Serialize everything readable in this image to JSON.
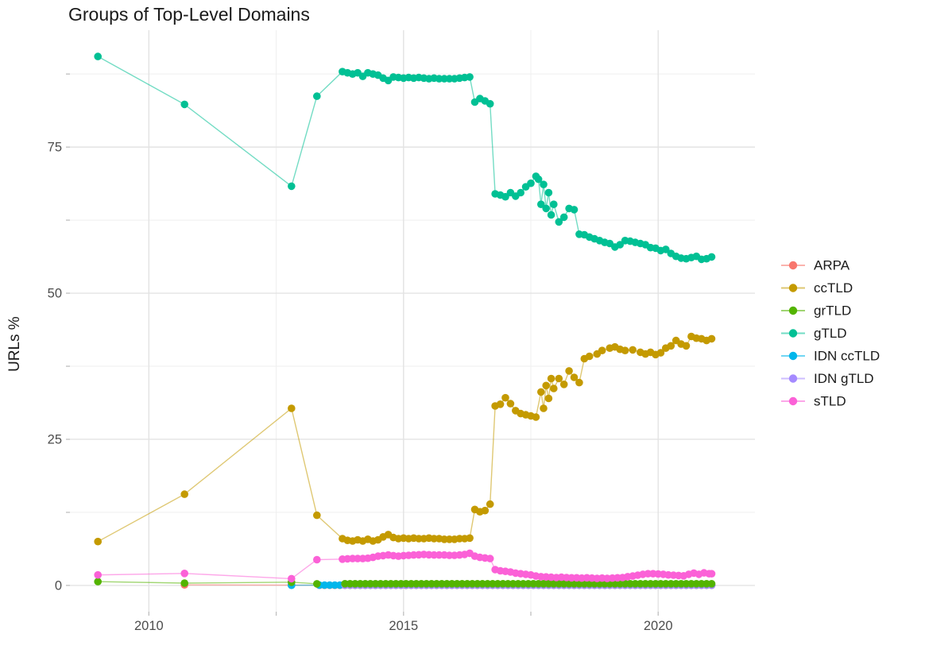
{
  "title": "Groups of Top-Level Domains",
  "chart_data": {
    "type": "line",
    "title": "Groups of Top-Level Domains",
    "xlabel": "",
    "ylabel": "URLs %",
    "xlim": [
      2008.45,
      2021.9
    ],
    "ylim": [
      -4.5,
      95.0
    ],
    "grid": true,
    "legend_position": "right",
    "x_ticks": {
      "major": [
        2010,
        2015,
        2020
      ],
      "labels": [
        "2010",
        "2015",
        "2020"
      ],
      "minor": [
        2012.5,
        2017.5
      ]
    },
    "y_ticks": {
      "major": [
        0,
        25,
        50,
        75
      ],
      "labels": [
        "0",
        "25",
        "50",
        "75"
      ],
      "minor": [
        12.5,
        37.5,
        62.5,
        87.5
      ]
    },
    "draw_order": [
      "ARPA",
      "IDN ccTLD",
      "IDN gTLD",
      "ccTLD",
      "grTLD",
      "gTLD",
      "sTLD"
    ],
    "series": [
      {
        "name": "ARPA",
        "color": "#F8766D",
        "points": [
          [
            2010.7,
            0.1
          ],
          [
            2012.8,
            0.05
          ]
        ],
        "flat": {
          "from": 2013.35,
          "to": 2021.05,
          "step": 0.1,
          "value": 0.02
        }
      },
      {
        "name": "ccTLD",
        "color": "#C49A00",
        "points": [
          [
            2009,
            7.5
          ],
          [
            2010.7,
            15.6
          ],
          [
            2012.8,
            30.3
          ],
          [
            2013.3,
            12.0
          ],
          [
            2013.8,
            8.0
          ],
          [
            2013.9,
            7.7
          ],
          [
            2014.0,
            7.6
          ],
          [
            2014.1,
            7.8
          ],
          [
            2014.2,
            7.6
          ],
          [
            2014.3,
            7.9
          ],
          [
            2014.4,
            7.6
          ],
          [
            2014.5,
            7.8
          ],
          [
            2014.6,
            8.3
          ],
          [
            2014.7,
            8.7
          ],
          [
            2014.8,
            8.2
          ],
          [
            2014.9,
            8.0
          ],
          [
            2015.0,
            8.1
          ],
          [
            2015.1,
            8.0
          ],
          [
            2015.2,
            8.1
          ],
          [
            2015.3,
            8.0
          ],
          [
            2015.4,
            8.0
          ],
          [
            2015.5,
            8.1
          ],
          [
            2015.6,
            8.0
          ],
          [
            2015.7,
            8.0
          ],
          [
            2015.8,
            7.9
          ],
          [
            2015.9,
            7.9
          ],
          [
            2016.0,
            7.9
          ],
          [
            2016.1,
            8.0
          ],
          [
            2016.2,
            8.0
          ],
          [
            2016.3,
            8.1
          ],
          [
            2016.4,
            13.0
          ],
          [
            2016.5,
            12.6
          ],
          [
            2016.6,
            12.8
          ],
          [
            2016.7,
            13.9
          ],
          [
            2016.8,
            30.7
          ],
          [
            2016.9,
            31.0
          ],
          [
            2017.0,
            32.1
          ],
          [
            2017.1,
            31.1
          ],
          [
            2017.2,
            29.9
          ],
          [
            2017.3,
            29.4
          ],
          [
            2017.4,
            29.2
          ],
          [
            2017.5,
            29.0
          ],
          [
            2017.6,
            28.8
          ],
          [
            2017.7,
            33.1
          ],
          [
            2017.75,
            30.3
          ],
          [
            2017.8,
            34.2
          ],
          [
            2017.85,
            32.0
          ],
          [
            2017.9,
            35.4
          ],
          [
            2017.95,
            33.7
          ],
          [
            2018.05,
            35.4
          ],
          [
            2018.15,
            34.4
          ],
          [
            2018.25,
            36.7
          ],
          [
            2018.35,
            35.6
          ],
          [
            2018.45,
            34.7
          ],
          [
            2018.55,
            38.8
          ],
          [
            2018.65,
            39.2
          ],
          [
            2018.8,
            39.6
          ],
          [
            2018.9,
            40.2
          ],
          [
            2019.05,
            40.6
          ],
          [
            2019.15,
            40.8
          ],
          [
            2019.25,
            40.4
          ],
          [
            2019.35,
            40.2
          ],
          [
            2019.5,
            40.3
          ],
          [
            2019.65,
            39.9
          ],
          [
            2019.75,
            39.6
          ],
          [
            2019.85,
            39.9
          ],
          [
            2019.95,
            39.5
          ],
          [
            2020.05,
            39.8
          ],
          [
            2020.15,
            40.6
          ],
          [
            2020.25,
            41.0
          ],
          [
            2020.35,
            41.9
          ],
          [
            2020.45,
            41.3
          ],
          [
            2020.55,
            41.0
          ],
          [
            2020.65,
            42.6
          ],
          [
            2020.75,
            42.3
          ],
          [
            2020.85,
            42.2
          ],
          [
            2020.95,
            41.9
          ],
          [
            2021.05,
            42.2
          ]
        ]
      },
      {
        "name": "grTLD",
        "color": "#53B400",
        "points": [
          [
            2009,
            0.65
          ],
          [
            2010.7,
            0.4
          ],
          [
            2012.8,
            0.55
          ],
          [
            2013.3,
            0.27
          ]
        ],
        "flat": {
          "from": 2013.85,
          "to": 2021.05,
          "step": 0.1,
          "value": 0.28
        }
      },
      {
        "name": "gTLD",
        "color": "#00C094",
        "points": [
          [
            2009,
            90.5
          ],
          [
            2010.7,
            82.3
          ],
          [
            2012.8,
            68.3
          ],
          [
            2013.3,
            83.7
          ],
          [
            2013.8,
            87.9
          ],
          [
            2013.9,
            87.7
          ],
          [
            2014.0,
            87.5
          ],
          [
            2014.1,
            87.7
          ],
          [
            2014.2,
            87.1
          ],
          [
            2014.3,
            87.7
          ],
          [
            2014.4,
            87.5
          ],
          [
            2014.5,
            87.3
          ],
          [
            2014.6,
            86.8
          ],
          [
            2014.7,
            86.4
          ],
          [
            2014.8,
            87.0
          ],
          [
            2014.9,
            86.9
          ],
          [
            2015.0,
            86.8
          ],
          [
            2015.1,
            86.9
          ],
          [
            2015.2,
            86.8
          ],
          [
            2015.3,
            86.9
          ],
          [
            2015.4,
            86.8
          ],
          [
            2015.5,
            86.7
          ],
          [
            2015.6,
            86.8
          ],
          [
            2015.7,
            86.7
          ],
          [
            2015.8,
            86.7
          ],
          [
            2015.9,
            86.7
          ],
          [
            2016.0,
            86.7
          ],
          [
            2016.1,
            86.8
          ],
          [
            2016.2,
            86.9
          ],
          [
            2016.3,
            87.0
          ],
          [
            2016.4,
            82.7
          ],
          [
            2016.5,
            83.3
          ],
          [
            2016.6,
            82.9
          ],
          [
            2016.7,
            82.4
          ],
          [
            2016.8,
            67.0
          ],
          [
            2016.9,
            66.8
          ],
          [
            2017.0,
            66.5
          ],
          [
            2017.1,
            67.2
          ],
          [
            2017.2,
            66.6
          ],
          [
            2017.3,
            67.2
          ],
          [
            2017.4,
            68.2
          ],
          [
            2017.5,
            68.8
          ],
          [
            2017.6,
            70.0
          ],
          [
            2017.65,
            69.5
          ],
          [
            2017.7,
            65.2
          ],
          [
            2017.75,
            68.6
          ],
          [
            2017.8,
            64.5
          ],
          [
            2017.85,
            67.2
          ],
          [
            2017.9,
            63.4
          ],
          [
            2017.95,
            65.2
          ],
          [
            2018.05,
            62.2
          ],
          [
            2018.15,
            63.0
          ],
          [
            2018.25,
            64.5
          ],
          [
            2018.35,
            64.3
          ],
          [
            2018.45,
            60.1
          ],
          [
            2018.55,
            60.0
          ],
          [
            2018.65,
            59.6
          ],
          [
            2018.75,
            59.3
          ],
          [
            2018.85,
            59.0
          ],
          [
            2018.95,
            58.7
          ],
          [
            2019.05,
            58.5
          ],
          [
            2019.15,
            57.9
          ],
          [
            2019.25,
            58.3
          ],
          [
            2019.35,
            59.0
          ],
          [
            2019.45,
            58.9
          ],
          [
            2019.55,
            58.7
          ],
          [
            2019.65,
            58.5
          ],
          [
            2019.75,
            58.3
          ],
          [
            2019.85,
            57.8
          ],
          [
            2019.95,
            57.7
          ],
          [
            2020.05,
            57.3
          ],
          [
            2020.15,
            57.5
          ],
          [
            2020.25,
            56.8
          ],
          [
            2020.35,
            56.3
          ],
          [
            2020.45,
            56.0
          ],
          [
            2020.55,
            55.9
          ],
          [
            2020.65,
            56.1
          ],
          [
            2020.75,
            56.3
          ],
          [
            2020.85,
            55.8
          ],
          [
            2020.95,
            55.9
          ],
          [
            2021.05,
            56.2
          ]
        ]
      },
      {
        "name": "IDN ccTLD",
        "color": "#00B6EB",
        "points": [
          [
            2012.8,
            0.02
          ]
        ],
        "flat": {
          "from": 2013.35,
          "to": 2021.05,
          "step": 0.1,
          "value": 0.05
        }
      },
      {
        "name": "IDN gTLD",
        "color": "#A58AFF",
        "points": [],
        "flat": {
          "from": 2013.85,
          "to": 2021.05,
          "step": 0.1,
          "value": 0.05
        }
      },
      {
        "name": "sTLD",
        "color": "#FB61D7",
        "points": [
          [
            2009,
            1.8
          ],
          [
            2010.7,
            2.05
          ],
          [
            2012.8,
            1.15
          ],
          [
            2013.3,
            4.4
          ],
          [
            2013.8,
            4.5
          ],
          [
            2013.9,
            4.55
          ],
          [
            2014.0,
            4.6
          ],
          [
            2014.1,
            4.6
          ],
          [
            2014.2,
            4.6
          ],
          [
            2014.3,
            4.65
          ],
          [
            2014.4,
            4.8
          ],
          [
            2014.5,
            5.0
          ],
          [
            2014.6,
            5.1
          ],
          [
            2014.7,
            5.2
          ],
          [
            2014.8,
            5.1
          ],
          [
            2014.9,
            5.0
          ],
          [
            2015.0,
            5.1
          ],
          [
            2015.1,
            5.15
          ],
          [
            2015.2,
            5.2
          ],
          [
            2015.3,
            5.25
          ],
          [
            2015.4,
            5.3
          ],
          [
            2015.5,
            5.25
          ],
          [
            2015.6,
            5.2
          ],
          [
            2015.7,
            5.2
          ],
          [
            2015.8,
            5.2
          ],
          [
            2015.9,
            5.15
          ],
          [
            2016.0,
            5.15
          ],
          [
            2016.1,
            5.2
          ],
          [
            2016.2,
            5.3
          ],
          [
            2016.3,
            5.5
          ],
          [
            2016.4,
            5.0
          ],
          [
            2016.5,
            4.8
          ],
          [
            2016.6,
            4.7
          ],
          [
            2016.7,
            4.6
          ],
          [
            2016.8,
            2.7
          ],
          [
            2016.9,
            2.5
          ],
          [
            2017.0,
            2.4
          ],
          [
            2017.1,
            2.3
          ],
          [
            2017.2,
            2.1
          ],
          [
            2017.3,
            2.0
          ],
          [
            2017.4,
            1.9
          ],
          [
            2017.5,
            1.8
          ],
          [
            2017.6,
            1.6
          ],
          [
            2017.7,
            1.5
          ],
          [
            2017.8,
            1.45
          ],
          [
            2017.9,
            1.4
          ],
          [
            2018.0,
            1.35
          ],
          [
            2018.1,
            1.4
          ],
          [
            2018.2,
            1.35
          ],
          [
            2018.3,
            1.3
          ],
          [
            2018.4,
            1.3
          ],
          [
            2018.5,
            1.25
          ],
          [
            2018.6,
            1.3
          ],
          [
            2018.7,
            1.25
          ],
          [
            2018.8,
            1.2
          ],
          [
            2018.9,
            1.25
          ],
          [
            2019.0,
            1.2
          ],
          [
            2019.1,
            1.25
          ],
          [
            2019.2,
            1.3
          ],
          [
            2019.3,
            1.35
          ],
          [
            2019.4,
            1.5
          ],
          [
            2019.5,
            1.6
          ],
          [
            2019.6,
            1.75
          ],
          [
            2019.7,
            1.9
          ],
          [
            2019.8,
            2.0
          ],
          [
            2019.9,
            2.0
          ],
          [
            2020.0,
            1.95
          ],
          [
            2020.1,
            1.9
          ],
          [
            2020.2,
            1.8
          ],
          [
            2020.3,
            1.75
          ],
          [
            2020.4,
            1.7
          ],
          [
            2020.5,
            1.65
          ],
          [
            2020.6,
            1.9
          ],
          [
            2020.7,
            2.1
          ],
          [
            2020.8,
            1.9
          ],
          [
            2020.9,
            2.15
          ],
          [
            2021.0,
            2.0
          ],
          [
            2021.05,
            2.0
          ]
        ]
      }
    ],
    "style": {
      "grid_major_color": "#E3E3E3",
      "grid_minor_color": "#EFEFEF",
      "tick_color": "#BFBFBF",
      "axis_text_color": "#4D4D4D",
      "legend_text_color": "#1a1a1a",
      "point_radius": 4.8,
      "line_opacity": 0.55
    }
  }
}
